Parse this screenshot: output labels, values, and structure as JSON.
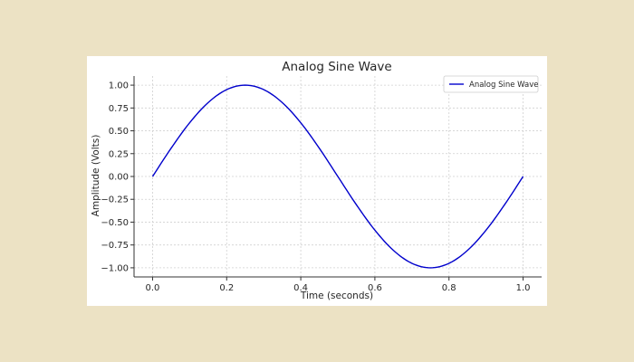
{
  "chart_data": {
    "type": "line",
    "title": "Analog Sine Wave",
    "xlabel": "Time (seconds)",
    "ylabel": "Amplitude (Volts)",
    "xlim": [
      -0.05,
      1.05
    ],
    "ylim": [
      -1.1,
      1.1
    ],
    "x_ticks": [
      0.0,
      0.2,
      0.4,
      0.6,
      0.8,
      1.0
    ],
    "x_tick_labels": [
      "0.0",
      "0.2",
      "0.4",
      "0.6",
      "0.8",
      "1.0"
    ],
    "y_ticks": [
      1.0,
      0.75,
      0.5,
      0.25,
      0.0,
      -0.25,
      -0.5,
      -0.75,
      -1.0
    ],
    "y_tick_labels": [
      "1.00",
      "0.75",
      "0.50",
      "0.25",
      "0.00",
      "−0.25",
      "−0.50",
      "−0.75",
      "−1.00"
    ],
    "grid": true,
    "legend_position": "top-right",
    "series": [
      {
        "name": "Analog Sine Wave",
        "color": "#0000cc",
        "x": [
          0.0,
          0.05,
          0.1,
          0.15,
          0.2,
          0.25,
          0.3,
          0.35,
          0.4,
          0.45,
          0.5,
          0.55,
          0.6,
          0.65,
          0.7,
          0.75,
          0.8,
          0.85,
          0.9,
          0.95,
          1.0
        ],
        "y": [
          0.0,
          0.309,
          0.588,
          0.809,
          0.951,
          1.0,
          0.951,
          0.809,
          0.588,
          0.309,
          0.0,
          -0.309,
          -0.588,
          -0.809,
          -0.951,
          -1.0,
          -0.951,
          -0.809,
          -0.588,
          -0.309,
          0.0
        ]
      }
    ]
  }
}
